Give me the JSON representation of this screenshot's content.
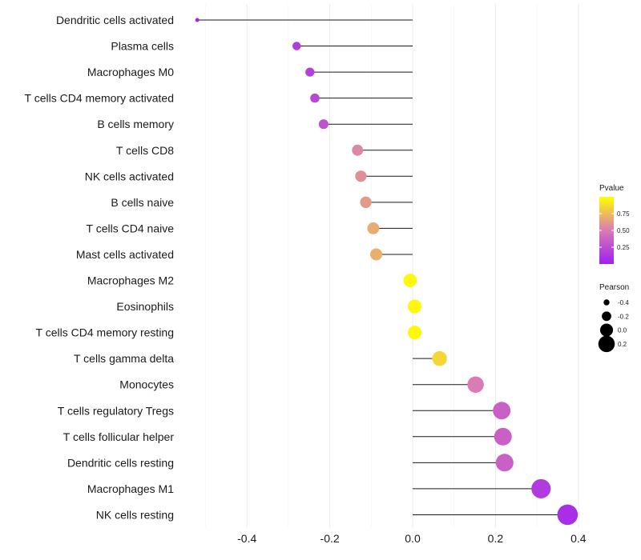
{
  "chart_data": {
    "type": "lollipop",
    "title": "",
    "xlabel": "",
    "ylabel": "",
    "xlim": [
      -0.5,
      0.4
    ],
    "x_ticks": [
      "-0.4",
      "-0.2",
      "0.0",
      "0.2",
      "0.4"
    ],
    "x_tick_values": [
      -0.4,
      -0.2,
      0.0,
      0.2,
      0.4
    ],
    "categories": [
      "Dendritic cells activated",
      "Plasma cells",
      "Macrophages M0",
      "T cells CD4 memory activated",
      "B cells memory",
      "T cells CD8",
      "NK cells activated",
      "B cells naive",
      "T cells CD4 naive",
      "Mast cells activated",
      "Macrophages M2",
      "Eosinophils",
      "T cells CD4 memory resting",
      "T cells gamma delta",
      "Monocytes",
      "T cells regulatory  Tregs ",
      "T cells follicular helper",
      "Dendritic cells resting",
      "Macrophages M1",
      "NK cells resting"
    ],
    "pearson": [
      -0.52,
      -0.28,
      -0.248,
      -0.236,
      -0.215,
      -0.133,
      -0.125,
      -0.113,
      -0.095,
      -0.088,
      -0.006,
      0.005,
      0.005,
      0.065,
      0.152,
      0.215,
      0.218,
      0.222,
      0.31,
      0.374
    ],
    "pvalue": [
      0.02,
      0.15,
      0.18,
      0.22,
      0.28,
      0.55,
      0.58,
      0.62,
      0.68,
      0.7,
      0.97,
      0.97,
      0.97,
      0.85,
      0.5,
      0.35,
      0.35,
      0.35,
      0.15,
      0.08
    ],
    "legend_pvalue": {
      "title": "Pvalue",
      "ticks": [
        "0.75",
        "0.50",
        "0.25"
      ],
      "tick_values": [
        0.75,
        0.5,
        0.25
      ],
      "range": [
        0.0,
        1.0
      ],
      "color_low": "#a020f0",
      "color_mid": "#d97bb4",
      "color_high": "#ffff00"
    },
    "legend_pearson": {
      "title": "Pearson",
      "labels": [
        "-0.4",
        "-0.2",
        "0.0",
        "0.2"
      ],
      "values": [
        -0.4,
        -0.2,
        0.0,
        0.2
      ]
    },
    "grid": "vertical",
    "legend_position": "right"
  }
}
